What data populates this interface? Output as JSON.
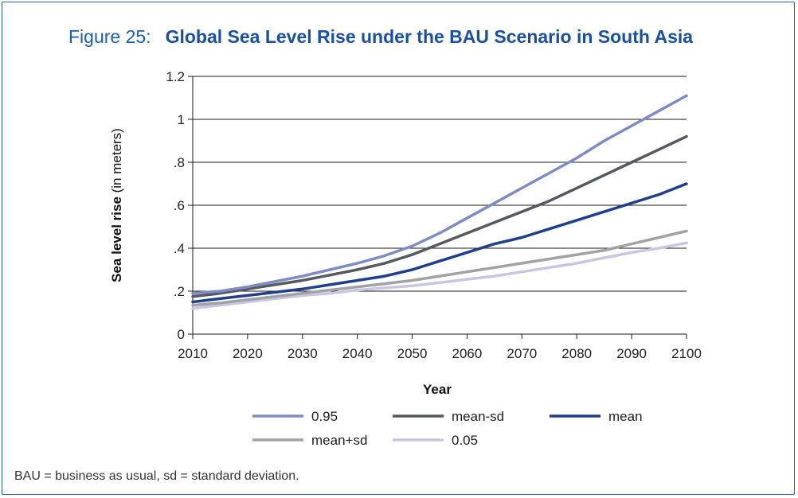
{
  "figure": {
    "label": "Figure 25:",
    "title": "Global Sea Level Rise under the BAU Scenario in South Asia",
    "footnote": "BAU = business as usual, sd = standard deviation."
  },
  "chart_data": {
    "type": "line",
    "title": "Global Sea Level Rise under the BAU Scenario in South Asia",
    "xlabel": "Year",
    "ylabel_bold": "Sea level rise",
    "ylabel_rest": " (in meters)",
    "xlim": [
      2010,
      2100
    ],
    "ylim": [
      0,
      1.2
    ],
    "x_ticks": [
      2010,
      2020,
      2030,
      2040,
      2050,
      2060,
      2070,
      2080,
      2090,
      2100
    ],
    "x_tick_labels": [
      "2010",
      "2020",
      "2030",
      "2040",
      "2050",
      "2060",
      "2070",
      "2080",
      "2090",
      "2100"
    ],
    "y_ticks": [
      0,
      0.2,
      0.4,
      0.6,
      0.8,
      1.0,
      1.2
    ],
    "y_tick_labels": [
      "0",
      ".2",
      ".4",
      ".6",
      ".8",
      "1",
      "1.2"
    ],
    "grid": "horizontal",
    "legend_position": "bottom",
    "x": [
      2010,
      2015,
      2020,
      2025,
      2030,
      2035,
      2040,
      2045,
      2050,
      2055,
      2060,
      2065,
      2070,
      2075,
      2080,
      2085,
      2090,
      2095,
      2100
    ],
    "series": [
      {
        "name": "0.95",
        "color": "#7f8cc4",
        "values": [
          0.19,
          0.2,
          0.22,
          0.245,
          0.27,
          0.3,
          0.33,
          0.365,
          0.41,
          0.47,
          0.54,
          0.61,
          0.68,
          0.75,
          0.82,
          0.9,
          0.97,
          1.04,
          1.11
        ]
      },
      {
        "name": "mean-sd",
        "color": "#555a60",
        "values": [
          0.175,
          0.19,
          0.21,
          0.23,
          0.25,
          0.275,
          0.3,
          0.33,
          0.37,
          0.42,
          0.47,
          0.52,
          0.57,
          0.62,
          0.68,
          0.74,
          0.8,
          0.86,
          0.92
        ]
      },
      {
        "name": "mean",
        "color": "#1f3e8c",
        "values": [
          0.15,
          0.165,
          0.18,
          0.195,
          0.21,
          0.23,
          0.25,
          0.27,
          0.3,
          0.34,
          0.38,
          0.42,
          0.45,
          0.49,
          0.53,
          0.57,
          0.61,
          0.65,
          0.7
        ]
      },
      {
        "name": "mean+sd",
        "color": "#a0a2a4",
        "values": [
          0.135,
          0.145,
          0.16,
          0.175,
          0.19,
          0.205,
          0.22,
          0.235,
          0.25,
          0.27,
          0.29,
          0.31,
          0.33,
          0.35,
          0.37,
          0.39,
          0.42,
          0.45,
          0.48
        ]
      },
      {
        "name": "0.05",
        "color": "#c8c6e2",
        "values": [
          0.12,
          0.135,
          0.15,
          0.165,
          0.18,
          0.19,
          0.205,
          0.215,
          0.225,
          0.24,
          0.255,
          0.27,
          0.29,
          0.31,
          0.33,
          0.355,
          0.38,
          0.4,
          0.425
        ]
      }
    ]
  }
}
